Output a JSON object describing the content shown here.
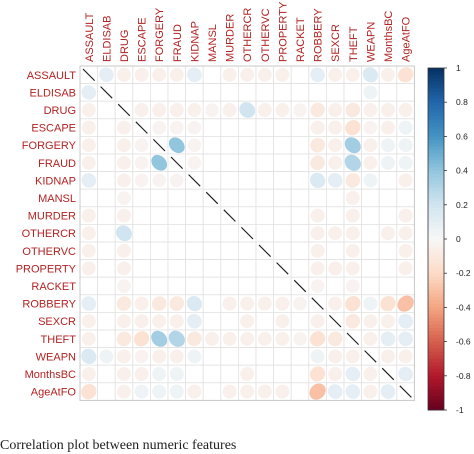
{
  "chart_data": {
    "type": "heatmap",
    "variables": [
      "ASSAULT",
      "ELDISAB",
      "DRUG",
      "ESCAPE",
      "FORGERY",
      "FRAUD",
      "KIDNAP",
      "MANSL",
      "MURDER",
      "OTHERCR",
      "OTHERVC",
      "PROPERTY",
      "RACKET",
      "ROBBERY",
      "SEXCR",
      "THEFT",
      "WEAPN",
      "MonthsBC",
      "AgeAtFO"
    ],
    "colorbar": {
      "range": [
        -1,
        1
      ],
      "ticks": [
        "1",
        "0.8",
        "0.6",
        "0.4",
        "0.2",
        "0",
        "-0.2",
        "-0.4",
        "-0.6",
        "-0.8",
        "-1"
      ],
      "colors": [
        "#67001f",
        "#b2182b",
        "#d6604d",
        "#f4a582",
        "#fddbc7",
        "#f7f7f7",
        "#d1e5f0",
        "#92c5de",
        "#4393c3",
        "#2166ac",
        "#053061"
      ]
    },
    "values": [
      [
        1,
        0.1,
        -0.05,
        -0.05,
        -0.05,
        -0.05,
        0.1,
        0,
        -0.05,
        -0.05,
        -0.05,
        -0.05,
        0,
        0.1,
        -0.05,
        -0.05,
        0.15,
        -0.05,
        -0.15
      ],
      [
        0.1,
        1,
        0,
        0,
        0,
        0,
        0,
        0,
        0,
        0,
        0,
        0,
        0,
        0,
        0,
        0,
        0.05,
        0,
        0
      ],
      [
        -0.05,
        0,
        1,
        -0.05,
        -0.05,
        -0.05,
        -0.05,
        -0.03,
        -0.05,
        0.2,
        -0.05,
        -0.05,
        -0.03,
        -0.1,
        -0.05,
        -0.1,
        -0.05,
        -0.05,
        -0.05
      ],
      [
        -0.05,
        0,
        -0.05,
        1,
        -0.03,
        -0.03,
        -0.03,
        0,
        0,
        0,
        0,
        0,
        0,
        -0.05,
        -0.05,
        -0.15,
        -0.03,
        -0.05,
        0.05
      ],
      [
        -0.05,
        0,
        -0.05,
        -0.03,
        1,
        0.4,
        -0.03,
        0,
        0,
        0,
        0,
        0,
        0,
        -0.1,
        -0.05,
        0.35,
        -0.05,
        0.05,
        0.05
      ],
      [
        -0.05,
        0,
        -0.05,
        -0.03,
        0.4,
        1,
        -0.03,
        0,
        0,
        0,
        0,
        0,
        0,
        -0.1,
        -0.05,
        0.3,
        -0.05,
        0.05,
        0.05
      ],
      [
        0.1,
        0,
        -0.05,
        -0.03,
        -0.03,
        -0.03,
        1,
        0,
        0,
        0,
        0,
        0,
        0,
        0.15,
        0.1,
        -0.1,
        0.05,
        0,
        -0.05
      ],
      [
        0,
        0,
        -0.03,
        0,
        0,
        0,
        0,
        1,
        0,
        0,
        0,
        0,
        0,
        0,
        0,
        -0.05,
        0,
        0,
        0
      ],
      [
        -0.05,
        0,
        -0.05,
        0,
        0,
        0,
        0,
        0,
        1,
        0,
        0,
        0,
        0,
        -0.05,
        0,
        -0.05,
        0,
        0,
        -0.05
      ],
      [
        -0.05,
        0,
        0.2,
        0,
        0,
        0,
        0,
        0,
        0,
        1,
        0,
        0,
        0,
        -0.05,
        -0.05,
        -0.05,
        0,
        -0.05,
        -0.05
      ],
      [
        -0.05,
        0,
        -0.05,
        0,
        0,
        0,
        0,
        0,
        0,
        0,
        1,
        0,
        0,
        -0.05,
        0,
        -0.05,
        0,
        0,
        -0.05
      ],
      [
        -0.05,
        0,
        -0.05,
        0,
        0,
        0,
        0,
        0,
        0,
        0,
        0,
        1,
        0,
        -0.05,
        -0.05,
        -0.05,
        0,
        0,
        -0.05
      ],
      [
        0,
        0,
        -0.03,
        0,
        0,
        0,
        0,
        0,
        0,
        0,
        0,
        0,
        1,
        -0.03,
        0,
        -0.03,
        0,
        0,
        0
      ],
      [
        0.1,
        0,
        -0.1,
        -0.05,
        -0.1,
        -0.1,
        0.15,
        0,
        -0.05,
        -0.05,
        -0.05,
        -0.05,
        -0.03,
        1,
        -0.05,
        -0.15,
        0.05,
        -0.15,
        -0.3
      ],
      [
        -0.05,
        0,
        -0.05,
        -0.05,
        -0.05,
        -0.05,
        0.1,
        0,
        0,
        -0.05,
        0,
        -0.05,
        0,
        -0.05,
        1,
        -0.1,
        -0.05,
        -0.05,
        0.1
      ],
      [
        -0.05,
        0,
        -0.1,
        -0.15,
        0.35,
        0.3,
        -0.1,
        -0.05,
        -0.05,
        -0.05,
        -0.05,
        -0.05,
        -0.03,
        -0.15,
        -0.1,
        1,
        -0.05,
        0.1,
        0.1
      ],
      [
        0.15,
        0.05,
        -0.05,
        -0.03,
        -0.05,
        -0.05,
        0.05,
        0,
        0,
        0,
        0,
        0,
        0,
        0.05,
        -0.05,
        -0.05,
        1,
        -0.05,
        -0.05
      ],
      [
        -0.05,
        0,
        -0.05,
        -0.05,
        0.05,
        0.05,
        0,
        0,
        0,
        -0.05,
        0,
        0,
        0,
        -0.15,
        -0.05,
        0.1,
        -0.05,
        1,
        0.1
      ],
      [
        -0.15,
        0,
        -0.05,
        0.05,
        0.05,
        0.05,
        -0.05,
        0,
        -0.05,
        -0.05,
        -0.05,
        -0.05,
        0,
        -0.3,
        0.1,
        0.1,
        -0.05,
        0.1,
        1
      ]
    ]
  },
  "caption": "Correlation plot between numeric features"
}
